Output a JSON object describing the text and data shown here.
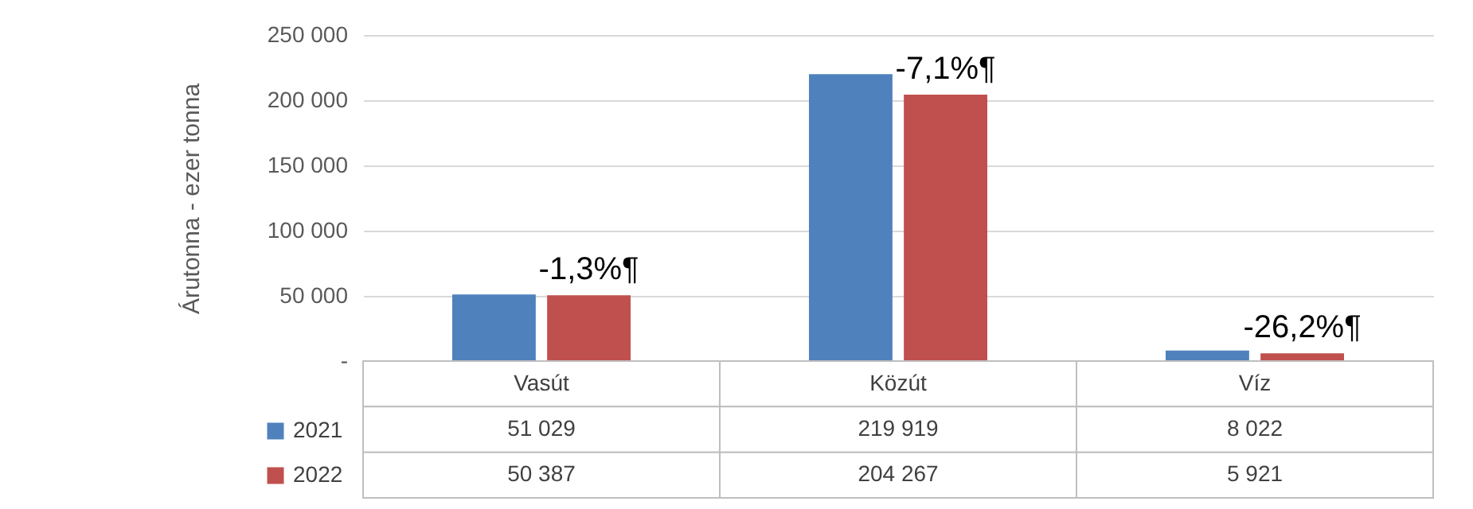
{
  "chart_data": {
    "type": "bar",
    "ylabel": "Árutonna - ezer tonna",
    "categories": [
      "Vasút",
      "Közút",
      "Víz"
    ],
    "series": [
      {
        "name": "2021",
        "color": "#4f81bd",
        "values": [
          51029,
          219919,
          8022
        ]
      },
      {
        "name": "2022",
        "color": "#c0504d",
        "values": [
          50387,
          204267,
          5921
        ]
      }
    ],
    "ylim": [
      0,
      250000
    ],
    "yticks": [
      {
        "value": 0,
        "label": "-"
      },
      50000,
      100000,
      150000,
      200000,
      250000
    ],
    "grid": "y",
    "legend": "bottom left",
    "data_labels": true,
    "annotations": [
      {
        "text": "-1,3%¶",
        "x": "Vasút",
        "y": 50387
      },
      {
        "text": "-7,1%¶",
        "x": "Közút",
        "y": 204267
      },
      {
        "text": "-26,2%¶",
        "x": "Víz",
        "y": 5921
      }
    ]
  }
}
